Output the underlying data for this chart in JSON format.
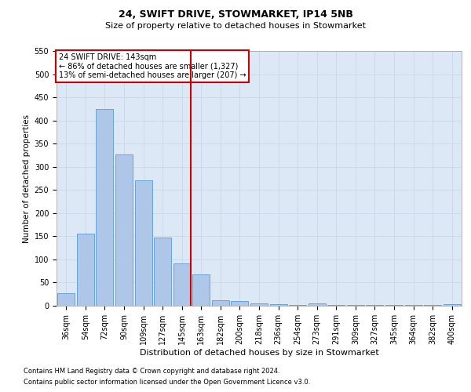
{
  "title1": "24, SWIFT DRIVE, STOWMARKET, IP14 5NB",
  "title2": "Size of property relative to detached houses in Stowmarket",
  "xlabel": "Distribution of detached houses by size in Stowmarket",
  "ylabel": "Number of detached properties",
  "categories": [
    "36sqm",
    "54sqm",
    "72sqm",
    "90sqm",
    "109sqm",
    "127sqm",
    "145sqm",
    "163sqm",
    "182sqm",
    "200sqm",
    "218sqm",
    "236sqm",
    "254sqm",
    "273sqm",
    "291sqm",
    "309sqm",
    "327sqm",
    "345sqm",
    "364sqm",
    "382sqm",
    "400sqm"
  ],
  "values": [
    27,
    155,
    425,
    327,
    270,
    147,
    91,
    68,
    12,
    10,
    5,
    3,
    2,
    5,
    1,
    1,
    1,
    1,
    1,
    1,
    4
  ],
  "bar_color": "#aec6e8",
  "bar_edge_color": "#5b9bd5",
  "vline_x_index": 6,
  "vline_color": "#cc0000",
  "annotation_text": "24 SWIFT DRIVE: 143sqm\n← 86% of detached houses are smaller (1,327)\n13% of semi-detached houses are larger (207) →",
  "annotation_box_color": "#ffffff",
  "annotation_box_edge_color": "#cc0000",
  "ylim": [
    0,
    550
  ],
  "yticks": [
    0,
    50,
    100,
    150,
    200,
    250,
    300,
    350,
    400,
    450,
    500,
    550
  ],
  "footnote1": "Contains HM Land Registry data © Crown copyright and database right 2024.",
  "footnote2": "Contains public sector information licensed under the Open Government Licence v3.0.",
  "title1_fontsize": 9,
  "title2_fontsize": 8,
  "xlabel_fontsize": 8,
  "ylabel_fontsize": 7.5,
  "tick_fontsize": 7,
  "annotation_fontsize": 7,
  "footnote_fontsize": 6,
  "background_color": "#ffffff",
  "grid_color": "#c8d4e8",
  "axes_facecolor": "#dce8f5"
}
